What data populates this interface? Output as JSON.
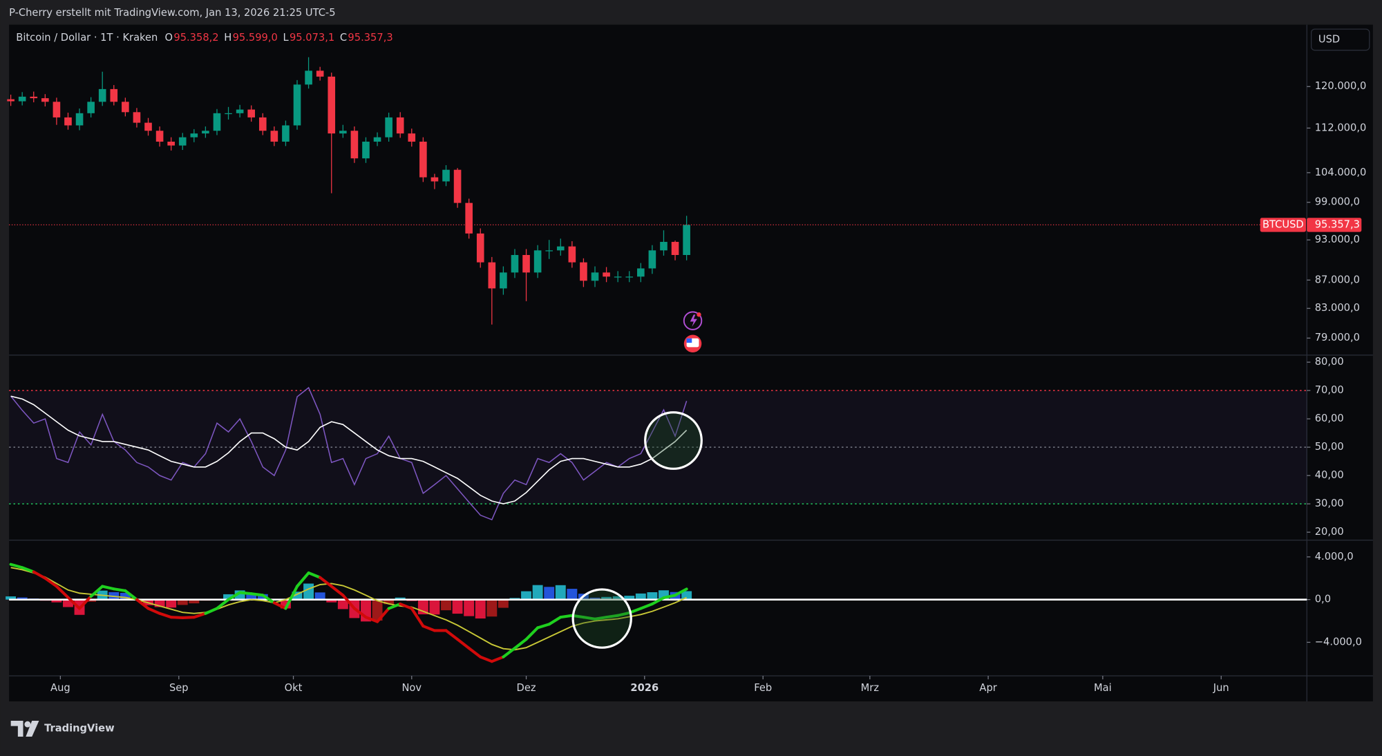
{
  "header": "P-Cherry erstellt mit TradingView.com, Jan 13, 2026 21:25 UTC-5",
  "currency": "USD",
  "footer": "TradingView",
  "chart_data": [
    {
      "type": "candlestick",
      "title": "Bitcoin / Dollar · 1T · Kraken",
      "ohlc": [
        {
          "key": "O",
          "value": "95.358,2"
        },
        {
          "key": "H",
          "value": "95.599,0"
        },
        {
          "key": "L",
          "value": "95.073,1"
        },
        {
          "key": "C",
          "value": "95.357,3"
        }
      ],
      "up_color": "#089981",
      "down_color": "#f23645",
      "log": true,
      "grid": false,
      "open": [
        117500,
        117100,
        118000,
        117700,
        117000,
        114000,
        112500,
        114800,
        117000,
        119500,
        117000,
        115000,
        113000,
        111500,
        109500,
        108800,
        110300,
        111000,
        111500,
        114800,
        114800,
        115500,
        114000,
        111500,
        109500,
        112500,
        120400,
        123200,
        122000,
        111000,
        111500,
        106500,
        109500,
        110300,
        114000,
        111000,
        109500,
        103200,
        102500,
        104500,
        98900,
        94000,
        89600,
        85800,
        88100,
        90700,
        88100,
        91400,
        91400,
        92000,
        89600,
        86900,
        88100,
        87500,
        87500,
        87500,
        88700,
        91400,
        92700,
        90700
      ],
      "high": [
        118400,
        118900,
        119000,
        118500,
        117800,
        114900,
        115700,
        117900,
        123000,
        120300,
        117800,
        115800,
        113900,
        112300,
        110300,
        111100,
        111800,
        112300,
        115600,
        116000,
        116400,
        116300,
        114800,
        112300,
        113400,
        121300,
        126000,
        124000,
        122800,
        112600,
        112300,
        110300,
        111200,
        114900,
        115000,
        111900,
        110300,
        103800,
        105300,
        104800,
        99600,
        94800,
        90400,
        89000,
        91600,
        91600,
        92200,
        93000,
        93200,
        92800,
        90200,
        89000,
        88900,
        88300,
        88300,
        89500,
        92200,
        94500,
        92900,
        96800
      ],
      "low": [
        116200,
        116300,
        116900,
        116100,
        112600,
        111700,
        111600,
        114000,
        116200,
        116300,
        114200,
        112100,
        110600,
        108600,
        107900,
        108000,
        109400,
        110200,
        110700,
        113600,
        114000,
        113200,
        110700,
        108700,
        108700,
        111700,
        119600,
        121200,
        100500,
        110200,
        105700,
        105700,
        108700,
        109500,
        110200,
        108600,
        102400,
        101200,
        101700,
        98100,
        93200,
        88800,
        80800,
        84900,
        87300,
        84000,
        87300,
        90100,
        90600,
        88800,
        86000,
        86000,
        86700,
        86700,
        86700,
        86700,
        87900,
        90600,
        89900,
        89900
      ],
      "close": [
        117100,
        118000,
        117700,
        117000,
        114000,
        112500,
        114800,
        117000,
        119500,
        117000,
        115000,
        113000,
        111500,
        109500,
        108800,
        110300,
        111000,
        111500,
        114800,
        114800,
        115500,
        114000,
        111500,
        109500,
        112500,
        120400,
        123200,
        122000,
        111000,
        111500,
        106500,
        109500,
        110300,
        114000,
        111000,
        109500,
        103200,
        102500,
        104500,
        98900,
        94000,
        89600,
        85800,
        88100,
        90700,
        88100,
        91400,
        91400,
        92000,
        89600,
        86900,
        88100,
        87500,
        87500,
        87500,
        88700,
        91400,
        92700,
        90700,
        95357.3
      ],
      "last_price": {
        "value": 95357.3,
        "label": "95.357,3",
        "symbol": "BTCUSD",
        "color": "#f23645"
      },
      "xlim": [
        -0.15,
        113.15
      ],
      "ylim": [
        76800,
        133000
      ],
      "yticks": [
        {
          "value": 120000,
          "label": "120.000,0"
        },
        {
          "value": 112000,
          "label": "112.000,0"
        },
        {
          "value": 104000,
          "label": "104.000,0"
        },
        {
          "value": 99000,
          "label": "99.000,0"
        },
        {
          "value": 93000,
          "label": "93.000,0"
        },
        {
          "value": 87000,
          "label": "87.000,0"
        },
        {
          "value": 83000,
          "label": "83.000,0"
        },
        {
          "value": 79000,
          "label": "79.000,0"
        }
      ]
    },
    {
      "type": "line",
      "grid": false,
      "series": [
        {
          "color": "#7e57c2",
          "values": [
            68,
            63,
            58.5,
            60,
            46,
            44.6,
            55.4,
            50.8,
            61.6,
            52,
            49,
            44.6,
            43,
            40,
            38.4,
            44.6,
            43,
            47.7,
            58.5,
            55.4,
            60,
            52,
            43,
            40,
            49,
            67.8,
            71,
            61.6,
            44.6,
            46,
            36.8,
            46,
            47.7,
            53.9,
            46,
            44.6,
            33.7,
            36.8,
            40,
            35.3,
            30.6,
            26,
            24.4,
            33.7,
            38.4,
            36.8,
            46,
            44.6,
            47.7,
            44.6,
            38.4,
            41.5,
            44.6,
            43,
            46,
            47.7,
            55.4,
            63.2,
            53.9,
            66.3
          ]
        },
        {
          "color": "#ffffff",
          "values": [
            68,
            67,
            65,
            62,
            59,
            56,
            54,
            53,
            52,
            52,
            51,
            50,
            49,
            47,
            45,
            44,
            43,
            43,
            45,
            48,
            52,
            55,
            55,
            53,
            50,
            49,
            52,
            57,
            59,
            58,
            55,
            52,
            49,
            47,
            46,
            46,
            45,
            43,
            41,
            39,
            36,
            33,
            31,
            30,
            31,
            34,
            38,
            42,
            45,
            46,
            46,
            45,
            44,
            43,
            43,
            44,
            46,
            49,
            52,
            56
          ]
        }
      ],
      "levels": [
        {
          "value": 70,
          "color": "#f23645"
        },
        {
          "value": 50,
          "color": "#787b86"
        },
        {
          "value": 30,
          "color": "#22c55e"
        }
      ],
      "band_color": "#7e57c2",
      "xlim": [
        -0.15,
        113.15
      ],
      "ylim": [
        17.2,
        82.5
      ],
      "yticks": [
        {
          "value": 80,
          "label": "80,00"
        },
        {
          "value": 70,
          "label": "70,00"
        },
        {
          "value": 60,
          "label": "60,00"
        },
        {
          "value": 50,
          "label": "50,00"
        },
        {
          "value": 40,
          "label": "40,00"
        },
        {
          "value": 30,
          "label": "30,00"
        },
        {
          "value": 20,
          "label": "20,00"
        }
      ]
    },
    {
      "type": "macd",
      "grid": false,
      "zero_line_color": "#ffffff",
      "series": [
        {
          "style": "histogram",
          "colors": [
            "#26c6da",
            "#2962ff",
            "#ff1744",
            "#b71c1c"
          ],
          "values": [
            300,
            200,
            100,
            -100,
            -260,
            -700,
            -1430,
            -200,
            840,
            700,
            630,
            0,
            -530,
            -700,
            -750,
            -500,
            -350,
            -100,
            70,
            500,
            860,
            550,
            510,
            0,
            -830,
            740,
            1500,
            670,
            -260,
            -890,
            -1730,
            -2050,
            -1970,
            -430,
            190,
            -130,
            -1380,
            -1400,
            -1000,
            -1320,
            -1550,
            -1770,
            -1590,
            -770,
            150,
            780,
            1360,
            1190,
            1350,
            1010,
            550,
            180,
            250,
            310,
            360,
            570,
            690,
            870,
            710,
            790
          ]
        },
        {
          "style": "line",
          "color": "#c8c836",
          "values": [
            3000,
            2800,
            2500,
            2100,
            1500,
            900,
            600,
            500,
            400,
            300,
            200,
            0,
            -300,
            -600,
            -900,
            -1200,
            -1300,
            -1200,
            -900,
            -500,
            -200,
            0,
            -100,
            -300,
            0,
            500,
            1000,
            1400,
            1500,
            1300,
            900,
            400,
            -100,
            -400,
            -600,
            -700,
            -1100,
            -1500,
            -1900,
            -2400,
            -3000,
            -3600,
            -4200,
            -4600,
            -4700,
            -4500,
            -4000,
            -3500,
            -3000,
            -2500,
            -2200,
            -2000,
            -1900,
            -1800,
            -1600,
            -1400,
            -1100,
            -700,
            -300,
            200
          ]
        },
        {
          "style": "crossline",
          "up_color": "#1fd01f",
          "down_color": "#d10a0a",
          "values": [
            3300,
            3000,
            2600,
            2000,
            1240,
            200,
            -830,
            300,
            1240,
            1000,
            830,
            0,
            -830,
            -1300,
            -1650,
            -1700,
            -1650,
            -1300,
            -830,
            0,
            660,
            550,
            410,
            -300,
            -830,
            1240,
            2500,
            2070,
            1240,
            410,
            -830,
            -1650,
            -2070,
            -830,
            -410,
            -830,
            -2480,
            -2900,
            -2900,
            -3720,
            -4550,
            -5370,
            -5790,
            -5370,
            -4550,
            -3720,
            -2640,
            -2310,
            -1650,
            -1490,
            -1650,
            -1820,
            -1650,
            -1490,
            -1240,
            -830,
            -410,
            170,
            410,
            990
          ]
        }
      ],
      "xlim": [
        -0.15,
        113.15
      ],
      "ylim": [
        -7140,
        5570
      ],
      "yticks": [
        {
          "value": 4000,
          "label": "4.000,0"
        },
        {
          "value": 0,
          "label": "0,0"
        },
        {
          "value": -4000,
          "label": "−4.000,0"
        }
      ],
      "xticks": [
        {
          "value": 4.33,
          "label": "Aug"
        },
        {
          "value": 14.67,
          "label": "Sep"
        },
        {
          "value": 24.67,
          "label": "Okt"
        },
        {
          "value": 35,
          "label": "Nov"
        },
        {
          "value": 45,
          "label": "Dez"
        },
        {
          "value": 55.33,
          "label": "2026",
          "bold": true
        },
        {
          "value": 65.67,
          "label": "Feb"
        },
        {
          "value": 75,
          "label": "Mrz"
        },
        {
          "value": 85.33,
          "label": "Apr"
        },
        {
          "value": 95.33,
          "label": "Mai"
        },
        {
          "value": 105.67,
          "label": "Jun"
        }
      ]
    }
  ]
}
